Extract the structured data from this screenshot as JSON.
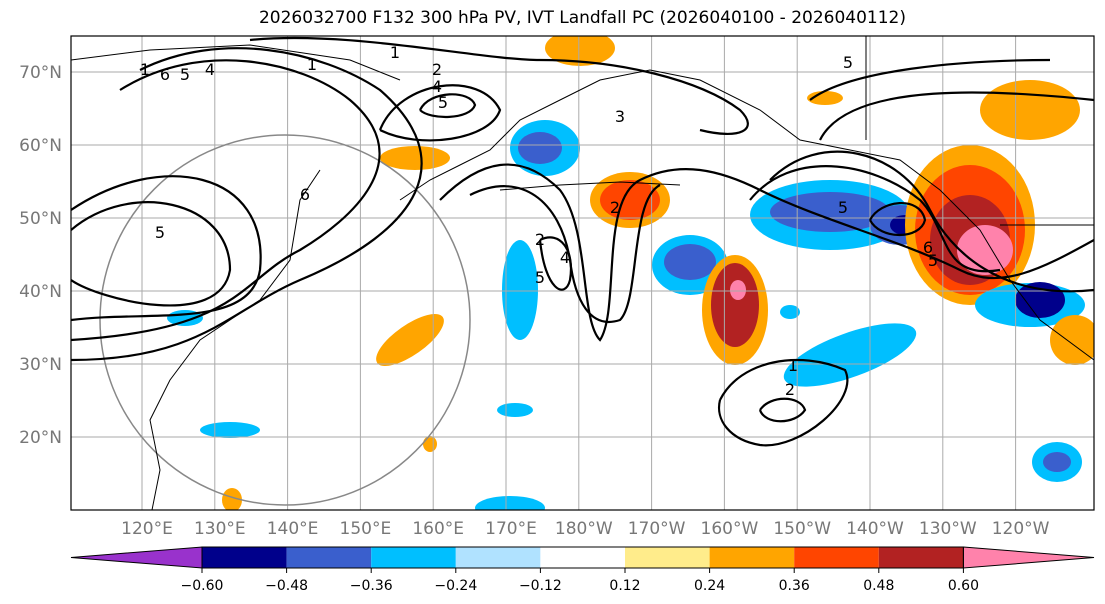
{
  "title": "2026032700 F132 300 hPa PV, IVT Landfall PC (2026040100 - 2026040112)",
  "lat_labels": [
    "70°N",
    "60°N",
    "50°N",
    "40°N",
    "30°N",
    "20°N"
  ],
  "lon_labels": [
    "120°E",
    "130°E",
    "140°E",
    "150°E",
    "160°E",
    "170°E",
    "180°W",
    "170°W",
    "160°W",
    "150°W",
    "140°W",
    "130°W",
    "120°W"
  ],
  "colorbar": {
    "colors": [
      "#9932CC",
      "#00008B",
      "#3A5FCD",
      "#00BFFF",
      "#B0E2FF",
      "#FFFFFF",
      "#FFEC8B",
      "#FFA500",
      "#FF4500",
      "#B22222",
      "#FF82AB"
    ],
    "tick_labels": [
      "−0.60",
      "−0.48",
      "−0.36",
      "−0.24",
      "−0.12",
      "0.12",
      "0.24",
      "0.36",
      "0.48",
      "0.60"
    ]
  },
  "contour_labels": [
    "1",
    "6",
    "5",
    "4",
    "1",
    "1",
    "2",
    "4",
    "5",
    "5",
    "3",
    "6",
    "2",
    "4",
    "5",
    "2",
    "5",
    "6",
    "5",
    "1",
    "2",
    "5"
  ]
}
